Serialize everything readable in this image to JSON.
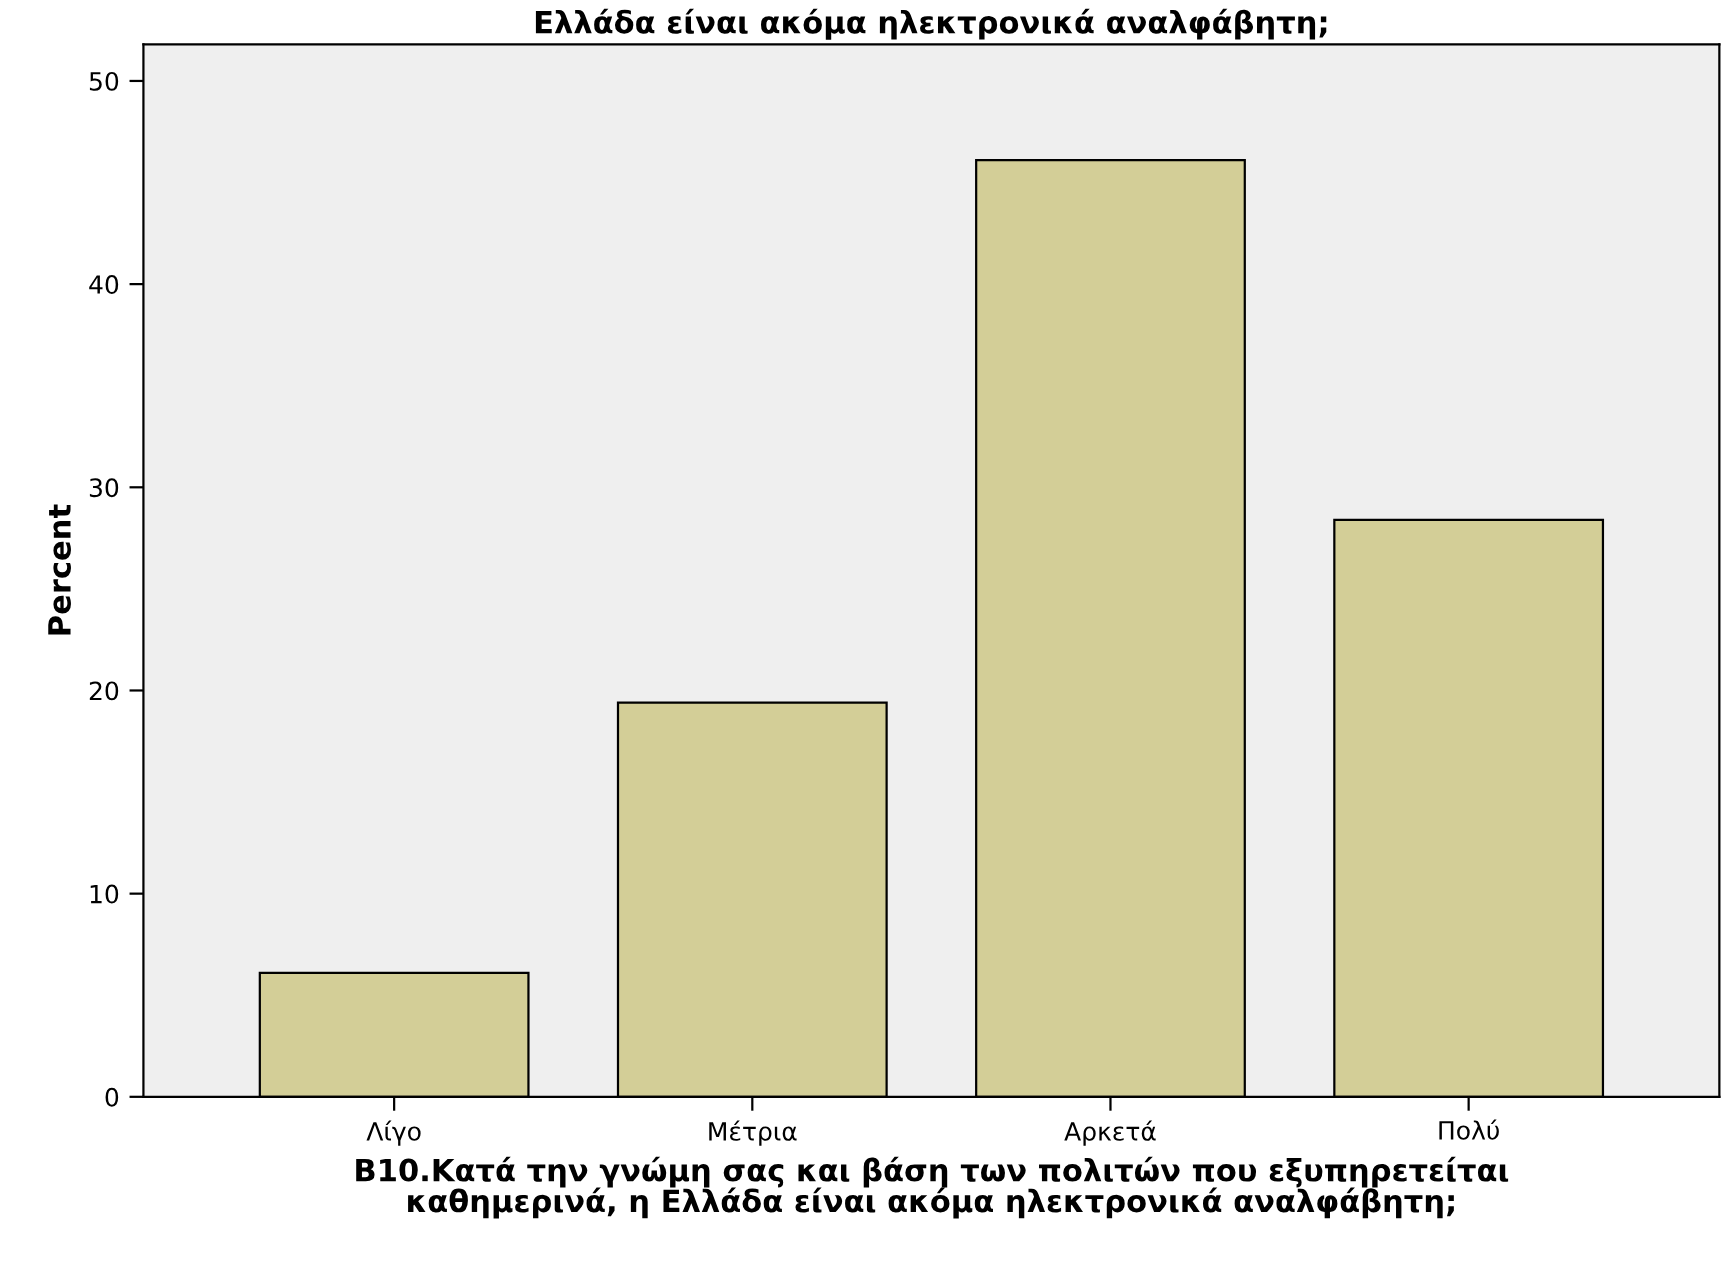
{
  "chart_data": {
    "type": "bar",
    "title": "Ελλάδα είναι ακόμα ηλεκτρονικά αναλφάβητη;",
    "xlabel": "B10.Κατά την γνώμη σας και βάση των πολιτών που εξυπηρετείται\nκαθημερινά, η Ελλάδα είναι ακόμα ηλεκτρονικά αναλφάβητη;",
    "ylabel": "Percent",
    "categories": [
      "Λίγο",
      "Μέτρια",
      "Αρκετά",
      "Πολύ"
    ],
    "values": [
      6.1,
      19.4,
      46.1,
      28.4
    ],
    "color": "#d3ce97",
    "ylim": [
      0,
      51.8
    ],
    "yticks": [
      0,
      10,
      20,
      30,
      40,
      50
    ],
    "grid": false
  }
}
